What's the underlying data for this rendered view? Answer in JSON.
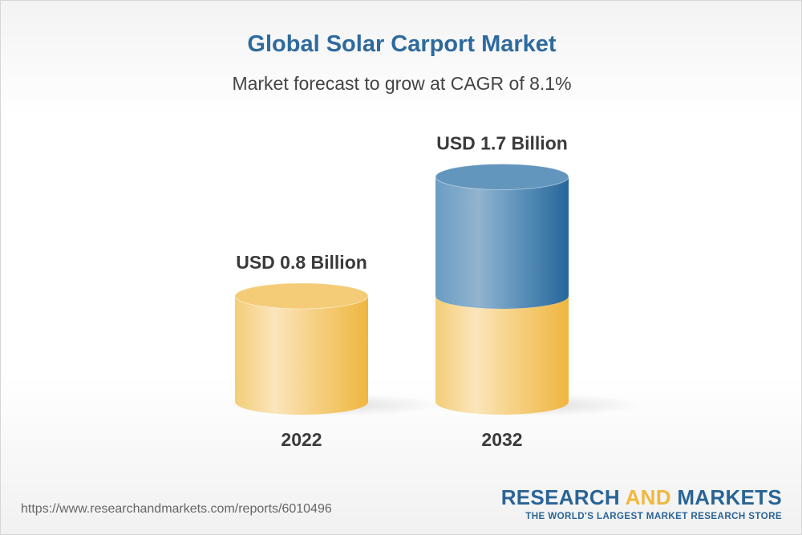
{
  "title": "Global Solar Carport Market",
  "subtitle": "Market forecast to grow at CAGR of 8.1%",
  "chart_data": {
    "type": "bar",
    "style": "3d-cylinder",
    "categories": [
      "2022",
      "2032"
    ],
    "values": [
      0.8,
      1.7
    ],
    "data_labels": [
      "USD 0.8 Billion",
      "USD 1.7 Billion"
    ],
    "unit": "USD Billion",
    "colors": {
      "base": "#f0b83f",
      "growth": "#2a6a9e"
    }
  },
  "footer": {
    "url": "https://www.researchandmarkets.com/reports/6010496",
    "logo_word1": "RESEARCH",
    "logo_word2": "AND",
    "logo_word3": "MARKETS",
    "tagline": "THE WORLD'S LARGEST MARKET RESEARCH STORE"
  }
}
